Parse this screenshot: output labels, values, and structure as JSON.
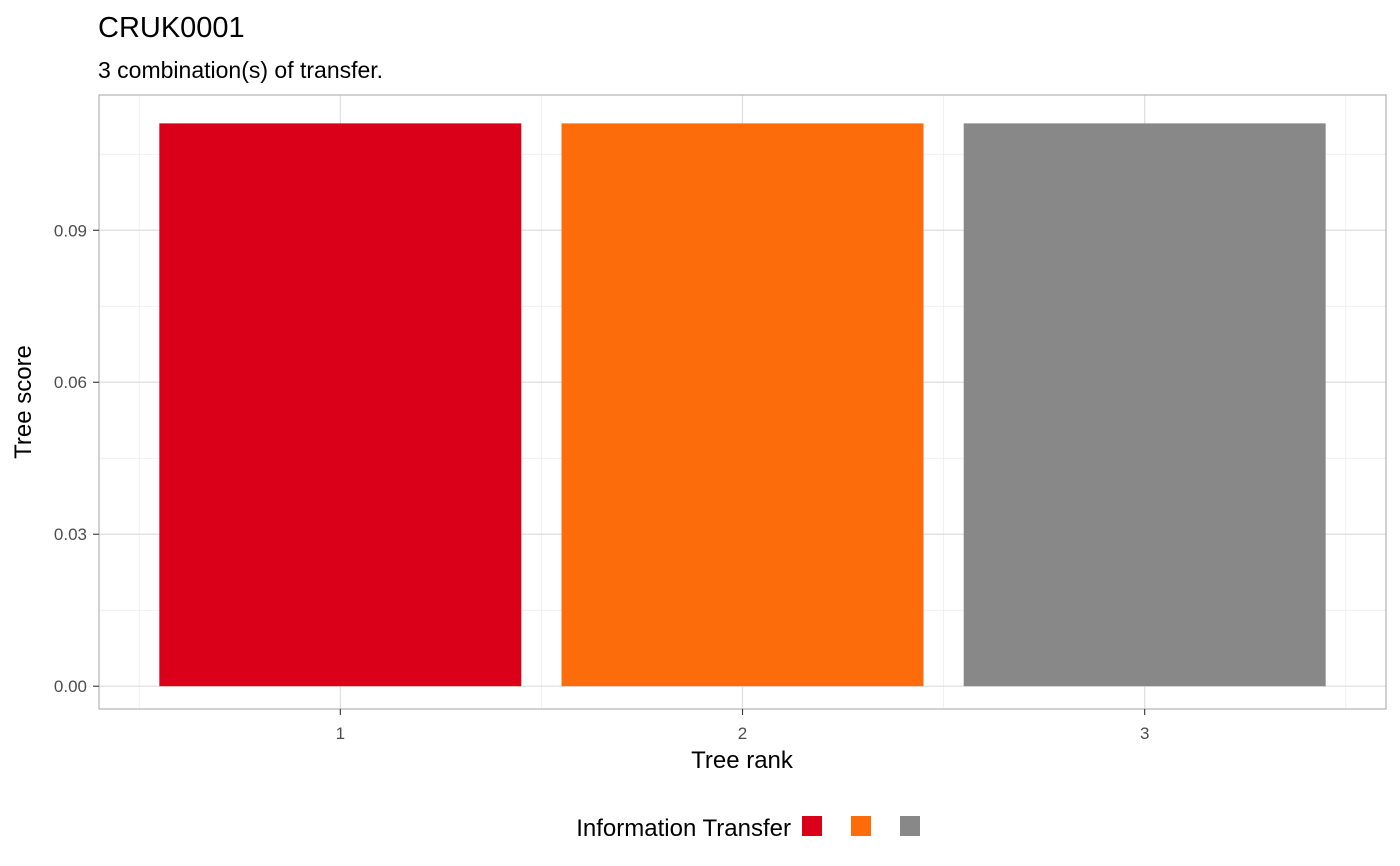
{
  "chart_data": {
    "type": "bar",
    "title": "CRUK0001",
    "subtitle": "3 combination(s) of transfer.",
    "xlabel": "Tree rank",
    "ylabel": "Tree score",
    "categories": [
      "1",
      "2",
      "3"
    ],
    "values": [
      0.1111,
      0.1111,
      0.1111
    ],
    "colors": [
      "#DA0019",
      "#FC6C0B",
      "#888888"
    ],
    "ylim": [
      -0.0045,
      0.1167
    ],
    "y_ticks": [
      0.0,
      0.03,
      0.06,
      0.09
    ],
    "y_tick_labels": [
      "0.00",
      "0.03",
      "0.06",
      "0.09"
    ],
    "grid": true,
    "legend": {
      "position": "bottom",
      "title": "Information Transfer",
      "entries": [
        "",
        "",
        ""
      ]
    }
  }
}
